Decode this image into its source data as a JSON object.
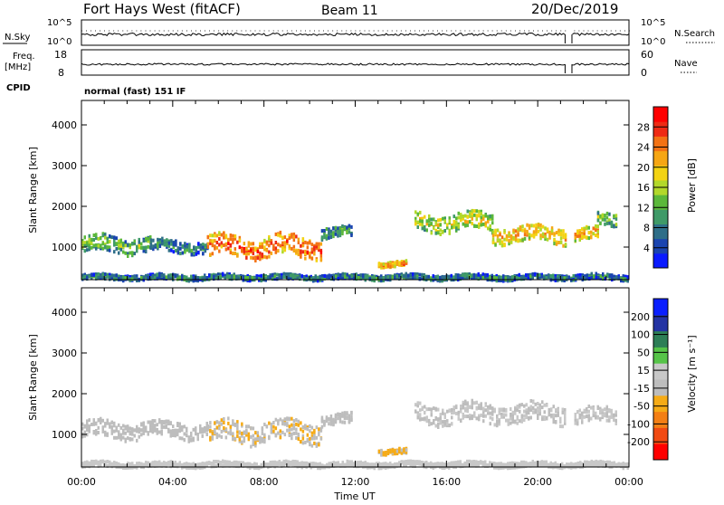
{
  "header": {
    "station": "Fort Hays West (fitACF)",
    "beam": "Beam 11",
    "date": "20/Dec/2019"
  },
  "top_panels": {
    "nsky_label": "N.Sky",
    "nsky_ticks": [
      "10^5",
      "10^0"
    ],
    "nsearch_label": "N.Search",
    "nsearch_ticks": [
      "10^5",
      "10^0"
    ],
    "freq_label": "Freq.",
    "freq_unit": "[MHz]",
    "freq_ticks": [
      "18",
      "8"
    ],
    "nave_label": "Nave",
    "nave_ticks": [
      "60",
      "0"
    ],
    "cpid_label": "CPID",
    "cpid_value": "normal (fast) 151 IF"
  },
  "time_axis": {
    "ticks": [
      "00:00",
      "04:00",
      "08:00",
      "12:00",
      "16:00",
      "20:00",
      "00:00"
    ],
    "label": "Time UT"
  },
  "colors": {
    "power_scale": [
      "#0a1aff",
      "#1a44b0",
      "#2e6e88",
      "#3f9a68",
      "#5bb83a",
      "#b2d82a",
      "#f3d313",
      "#f6a614",
      "#f37214",
      "#ef2a14",
      "#ff0000"
    ],
    "velocity_scale": [
      "#ff0000",
      "#f14a12",
      "#f47f14",
      "#f6ab16",
      "#bdbdbd",
      "#c8c8c8",
      "#56c448",
      "#2d7e56",
      "#2433a3",
      "#0a1fff"
    ]
  },
  "chart_data": [
    {
      "type": "heatmap",
      "panel": "power",
      "ylabel": "Slant Range [km]",
      "yticks": [
        "1000",
        "2000",
        "3000",
        "4000"
      ],
      "ylim": [
        200,
        4600
      ],
      "xlim_hours": [
        0,
        24
      ],
      "colorbar_label": "Power [dB]",
      "colorbar_ticks": [
        "4",
        "8",
        "12",
        "16",
        "20",
        "24",
        "28"
      ],
      "colorbar_range": [
        0,
        32
      ],
      "features": [
        {
          "x": [
            0.0,
            3.0
          ],
          "y_center": 1100,
          "thickness": 380,
          "level": 14
        },
        {
          "x": [
            3.0,
            5.5
          ],
          "y_center": 1050,
          "thickness": 280,
          "level": 10
        },
        {
          "x": [
            5.5,
            10.5
          ],
          "y_center": 1050,
          "thickness": 500,
          "level": 26
        },
        {
          "x": [
            10.5,
            11.8
          ],
          "y_center": 1400,
          "thickness": 250,
          "level": 12
        },
        {
          "x": [
            14.6,
            18.0
          ],
          "y_center": 1650,
          "thickness": 420,
          "level": 18
        },
        {
          "x": [
            18.0,
            21.2
          ],
          "y_center": 1350,
          "thickness": 380,
          "level": 22
        },
        {
          "x": [
            21.6,
            22.6
          ],
          "y_center": 1350,
          "thickness": 300,
          "level": 22
        },
        {
          "x": [
            22.6,
            23.4
          ],
          "y_center": 1700,
          "thickness": 300,
          "level": 16
        },
        {
          "x": [
            0.0,
            24.0
          ],
          "y_center": 300,
          "thickness": 120,
          "level": 10
        },
        {
          "x": [
            13.0,
            14.2
          ],
          "y_center": 620,
          "thickness": 120,
          "level": 24
        }
      ]
    },
    {
      "type": "heatmap",
      "panel": "velocity",
      "ylabel": "Slant Range [km]",
      "yticks": [
        "1000",
        "2000",
        "3000",
        "4000"
      ],
      "ylim": [
        200,
        4600
      ],
      "xlim_hours": [
        0,
        24
      ],
      "colorbar_label": "Velocity [m s⁻¹]",
      "colorbar_ticks": [
        "-200",
        "-100",
        "-50",
        "-15",
        "15",
        "50",
        "100",
        "200"
      ],
      "colorbar_range": [
        -250,
        250
      ],
      "features": [
        {
          "x": [
            0.0,
            5.5
          ],
          "y_center": 1150,
          "thickness": 380,
          "level": -30
        },
        {
          "x": [
            5.5,
            10.5
          ],
          "y_center": 1100,
          "thickness": 500,
          "level": -40
        },
        {
          "x": [
            10.5,
            11.8
          ],
          "y_center": 1400,
          "thickness": 250,
          "level": -20
        },
        {
          "x": [
            14.6,
            21.2
          ],
          "y_center": 1550,
          "thickness": 450,
          "level": 0
        },
        {
          "x": [
            21.6,
            23.4
          ],
          "y_center": 1500,
          "thickness": 350,
          "level": 0
        },
        {
          "x": [
            0.0,
            24.0
          ],
          "y_center": 300,
          "thickness": 120,
          "level": 30
        },
        {
          "x": [
            13.0,
            14.2
          ],
          "y_center": 620,
          "thickness": 120,
          "level": -60
        }
      ]
    }
  ]
}
